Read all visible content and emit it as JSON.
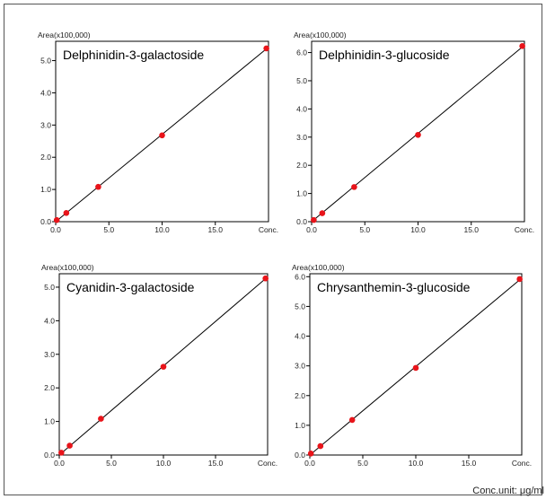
{
  "chart_data": [
    {
      "type": "scatter",
      "title": "Delphinidin-3-galactoside",
      "ylabel": "Area(x100,000)",
      "xlabel": "Conc.",
      "xlim": [
        0,
        20
      ],
      "ylim": [
        0,
        5.6
      ],
      "xticks": [
        "0.0",
        "5.0",
        "10.0",
        "15.0"
      ],
      "yticks": [
        "0.0",
        "1.0",
        "2.0",
        "3.0",
        "4.0",
        "5.0"
      ],
      "x": [
        0.1,
        1.0,
        4.0,
        10.0,
        19.8
      ],
      "y": [
        0.05,
        0.27,
        1.08,
        2.68,
        5.38
      ],
      "fit_line": true,
      "grid": false
    },
    {
      "type": "scatter",
      "title": "Delphinidin-3-glucoside",
      "ylabel": "Area(x100,000)",
      "xlabel": "Conc.",
      "xlim": [
        0,
        20
      ],
      "ylim": [
        0,
        6.4
      ],
      "xticks": [
        "0.0",
        "5.0",
        "10.0",
        "15.0"
      ],
      "yticks": [
        "0.0",
        "1.0",
        "2.0",
        "3.0",
        "4.0",
        "5.0",
        "6.0"
      ],
      "x": [
        0.2,
        1.0,
        4.0,
        10.0,
        19.8
      ],
      "y": [
        0.06,
        0.3,
        1.23,
        3.08,
        6.23
      ],
      "fit_line": true,
      "grid": false
    },
    {
      "type": "scatter",
      "title": "Cyanidin-3-galactoside",
      "ylabel": "Area(x100,000)",
      "xlabel": "Conc.",
      "xlim": [
        0,
        20
      ],
      "ylim": [
        0,
        5.4
      ],
      "xticks": [
        "0.0",
        "5.0",
        "10.0",
        "15.0"
      ],
      "yticks": [
        "0.0",
        "1.0",
        "2.0",
        "3.0",
        "4.0",
        "5.0"
      ],
      "x": [
        0.2,
        1.0,
        4.0,
        10.0,
        19.8
      ],
      "y": [
        0.07,
        0.28,
        1.08,
        2.63,
        5.26
      ],
      "fit_line": true,
      "grid": false
    },
    {
      "type": "scatter",
      "title": "Chrysanthemin-3-glucoside",
      "ylabel": "Area(x100,000)",
      "xlabel": "Conc.",
      "xlim": [
        0,
        20
      ],
      "ylim": [
        0,
        6.1
      ],
      "xticks": [
        "0.0",
        "5.0",
        "10.0",
        "15.0"
      ],
      "yticks": [
        "0.0",
        "1.0",
        "2.0",
        "3.0",
        "4.0",
        "5.0",
        "6.0"
      ],
      "x": [
        0.1,
        1.0,
        4.0,
        10.0,
        19.8
      ],
      "y": [
        0.05,
        0.3,
        1.18,
        2.93,
        5.92
      ],
      "fit_line": true,
      "grid": false
    }
  ],
  "footer": {
    "conc_unit": "Conc.unit: μg/ml"
  },
  "colors": {
    "point": "#e8141a",
    "line": "#000000",
    "axis": "#000000"
  }
}
